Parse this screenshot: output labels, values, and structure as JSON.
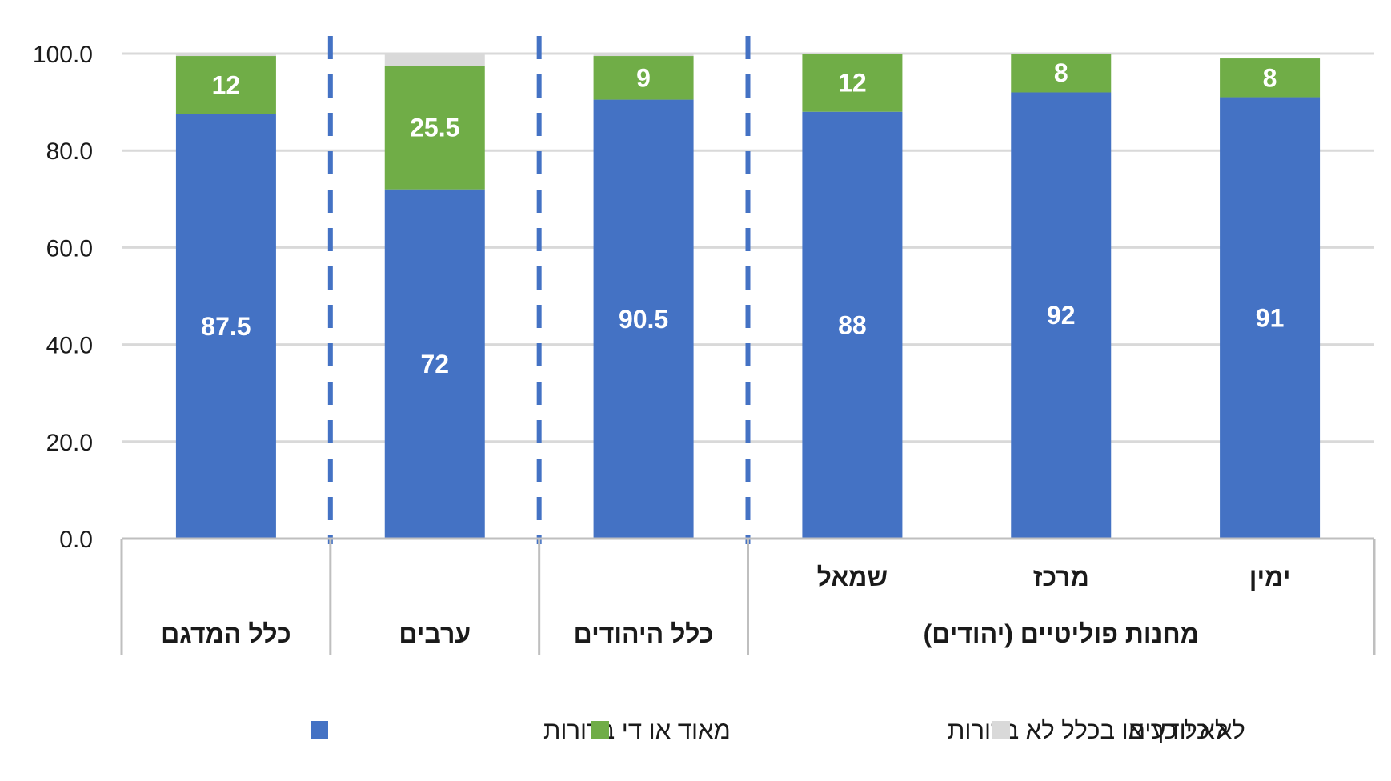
{
  "chart_data": {
    "type": "bar",
    "stacked": true,
    "ylim": [
      0,
      100
    ],
    "yticks": [
      "0.0",
      "20.0",
      "40.0",
      "60.0",
      "80.0",
      "100.0"
    ],
    "ytick_values": [
      0,
      20,
      40,
      60,
      80,
      100
    ],
    "grid": true,
    "legend_position": "bottom",
    "categories": [
      "כלל המדגם",
      "ערבים",
      "כלל היהודים",
      "שמאל",
      "מרכז",
      "ימין"
    ],
    "group_labels": [
      {
        "label": "כלל המדגם",
        "members": [
          0
        ]
      },
      {
        "label": "ערבים",
        "members": [
          1
        ]
      },
      {
        "label": "כלל היהודים",
        "members": [
          2
        ]
      },
      {
        "label": "מחנות פוליטיים (יהודים)",
        "members": [
          3,
          4,
          5
        ]
      }
    ],
    "series": [
      {
        "name": "מאוד או די ברורות",
        "color": "#4472C4",
        "values": [
          87.5,
          72,
          90.5,
          88,
          92,
          91
        ],
        "labels": [
          "87.5",
          "72",
          "90.5",
          "88",
          "92",
          "91"
        ]
      },
      {
        "name": "לא כל כך או בכלל לא ברורות",
        "color": "#70AD47",
        "values": [
          12,
          25.5,
          9,
          12,
          8,
          8
        ],
        "labels": [
          "12",
          "25.5",
          "9",
          "12",
          "8",
          "8"
        ]
      },
      {
        "name": "לא יודעים",
        "color": "#D9D9D9",
        "values": [
          0.5,
          2.5,
          0.5,
          0,
          0,
          0
        ],
        "labels": [
          "",
          "",
          "",
          "",
          "",
          ""
        ]
      }
    ]
  },
  "colors": {
    "grid": "#D9D9D9",
    "axis": "#BFBFBF",
    "separator": "#4472C4",
    "text": "#1a1a1a",
    "bar_label": "#ffffff"
  }
}
